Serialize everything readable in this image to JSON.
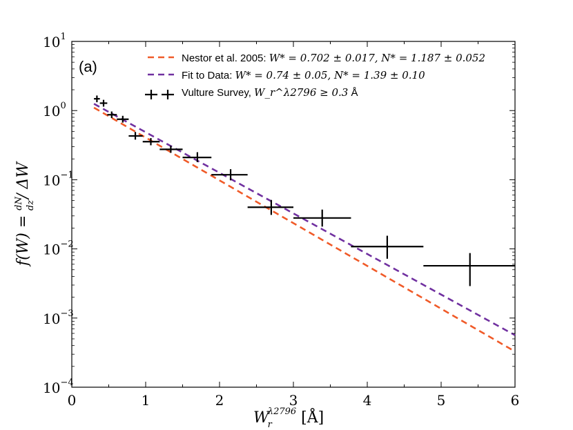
{
  "chart_data": {
    "type": "scatter",
    "panel_label": "(a)",
    "xlabel": "W_r^λ2796 [Å]",
    "xlabel_parts": {
      "base": "W",
      "sub": "r",
      "sup": "λ2796",
      "unit": " [Å]"
    },
    "ylabel": "f(W) = (dN/dz) / ΔW",
    "ylabel_parts": {
      "left": "f(W) = ",
      "num": "dN",
      "den": "dz",
      "right": "/ ΔW"
    },
    "xlim": [
      0,
      6
    ],
    "ylim": [
      0.0001,
      10
    ],
    "yscale": "log",
    "x_ticks": [
      "0",
      "1",
      "2",
      "3",
      "4",
      "5",
      "6"
    ],
    "x_tick_values": [
      0,
      1,
      2,
      3,
      4,
      5,
      6
    ],
    "y_ticks": [
      {
        "base": "10",
        "exp": "−4",
        "value": 0.0001
      },
      {
        "base": "10",
        "exp": "−3",
        "value": 0.001
      },
      {
        "base": "10",
        "exp": "−2",
        "value": 0.01
      },
      {
        "base": "10",
        "exp": "−1",
        "value": 0.1
      },
      {
        "base": "10",
        "exp": "0",
        "value": 1
      },
      {
        "base": "10",
        "exp": "1",
        "value": 10
      }
    ],
    "series": [
      {
        "name": "Nestor et al. 2005",
        "legend_text": "Nestor et al. 2005: ",
        "legend_math": "W* = 0.702 ± 0.017, N* = 1.187 ± 0.052",
        "kind": "dashed-line",
        "color": "#f05a28",
        "W_star": 0.702,
        "N_star": 1.187,
        "x_range": [
          0.3,
          6.0
        ]
      },
      {
        "name": "Fit to Data",
        "legend_text": "Fit to Data: ",
        "legend_math": "W* = 0.74 ± 0.05, N* = 1.39 ± 0.10",
        "kind": "dashed-line",
        "color": "#7030a0",
        "W_star": 0.74,
        "N_star": 1.39,
        "x_range": [
          0.3,
          6.0
        ]
      },
      {
        "name": "Vulture Survey",
        "legend_text": "Vulture Survey, ",
        "legend_math": "W_r^λ2796 ≥ 0.3",
        "legend_unit": " Å",
        "kind": "errorbar",
        "color": "#000000",
        "points": [
          {
            "x": 0.34,
            "y": 1.48,
            "xlo": 0.3,
            "xhi": 0.38,
            "ylo": 1.32,
            "yhi": 1.65
          },
          {
            "x": 0.43,
            "y": 1.28,
            "xlo": 0.38,
            "xhi": 0.48,
            "ylo": 1.14,
            "yhi": 1.43
          },
          {
            "x": 0.54,
            "y": 0.87,
            "xlo": 0.48,
            "xhi": 0.61,
            "ylo": 0.78,
            "yhi": 0.97
          },
          {
            "x": 0.69,
            "y": 0.75,
            "xlo": 0.61,
            "xhi": 0.77,
            "ylo": 0.67,
            "yhi": 0.84
          },
          {
            "x": 0.86,
            "y": 0.43,
            "xlo": 0.77,
            "xhi": 0.96,
            "ylo": 0.38,
            "yhi": 0.49
          },
          {
            "x": 1.07,
            "y": 0.355,
            "xlo": 0.96,
            "xhi": 1.19,
            "ylo": 0.315,
            "yhi": 0.4
          },
          {
            "x": 1.34,
            "y": 0.275,
            "xlo": 1.19,
            "xhi": 1.5,
            "ylo": 0.245,
            "yhi": 0.31
          },
          {
            "x": 1.7,
            "y": 0.21,
            "xlo": 1.5,
            "xhi": 1.89,
            "ylo": 0.18,
            "yhi": 0.25
          },
          {
            "x": 2.15,
            "y": 0.118,
            "xlo": 1.89,
            "xhi": 2.38,
            "ylo": 0.098,
            "yhi": 0.142
          },
          {
            "x": 2.7,
            "y": 0.04,
            "xlo": 2.38,
            "xhi": 3.0,
            "ylo": 0.031,
            "yhi": 0.051
          },
          {
            "x": 3.39,
            "y": 0.028,
            "xlo": 3.0,
            "xhi": 3.78,
            "ylo": 0.021,
            "yhi": 0.037
          },
          {
            "x": 4.27,
            "y": 0.0108,
            "xlo": 3.78,
            "xhi": 4.76,
            "ylo": 0.0072,
            "yhi": 0.0155
          },
          {
            "x": 5.39,
            "y": 0.0057,
            "xlo": 4.76,
            "xhi": 6.0,
            "ylo": 0.0029,
            "yhi": 0.0087
          }
        ]
      }
    ]
  }
}
